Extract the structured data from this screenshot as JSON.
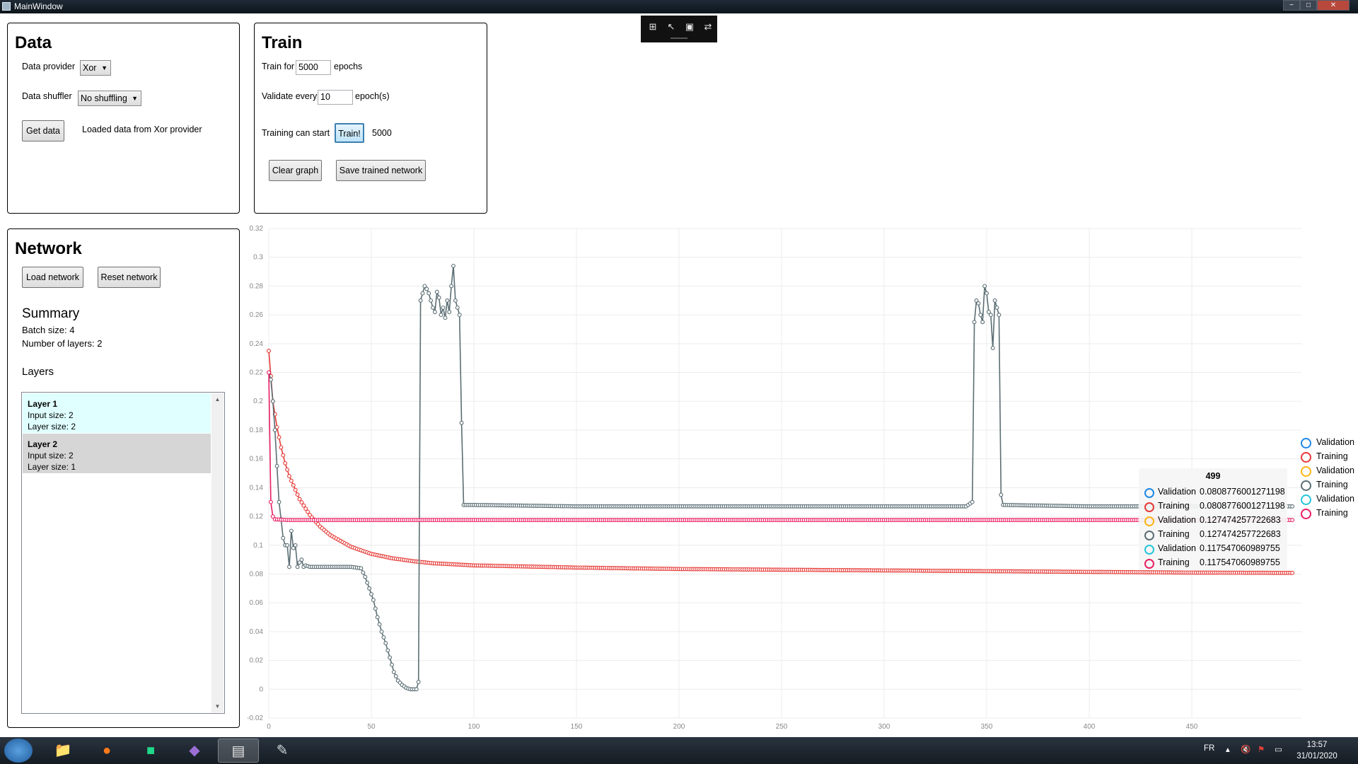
{
  "window": {
    "title": "MainWindow",
    "min_label": "−",
    "max_label": "□",
    "close_label": "✕"
  },
  "overlay_toolbar": {
    "icons": [
      "export-icon",
      "select-icon",
      "zoom-fit-icon",
      "pan-icon"
    ],
    "glyphs": [
      "⊞",
      "↖",
      "▣",
      "⇄"
    ]
  },
  "data_panel": {
    "heading": "Data",
    "provider_label": "Data provider",
    "provider_value": "Xor",
    "shuffler_label": "Data shuffler",
    "shuffler_value": "No shuffling",
    "get_data_button": "Get data",
    "status": "Loaded data from Xor provider"
  },
  "train_panel": {
    "heading": "Train",
    "train_for_label": "Train for",
    "epochs_value": "5000",
    "epochs_label": "epochs",
    "validate_label": "Validate every",
    "validate_value": "10",
    "validate_unit": "epoch(s)",
    "status_label": "Training can start",
    "train_button": "Train!",
    "epoch_counter": "5000",
    "clear_graph_button": "Clear graph",
    "save_network_button": "Save trained network"
  },
  "network_panel": {
    "heading": "Network",
    "load_button": "Load network",
    "reset_button": "Reset network",
    "summary_heading": "Summary",
    "batch_size": "Batch size:  4",
    "num_layers": "Number of layers:  2",
    "layers_heading": "Layers",
    "layers": [
      {
        "title": "Layer  1",
        "input": "Input size:  2",
        "size": "Layer size:  2",
        "color": "#e0ffff"
      },
      {
        "title": "Layer  2",
        "input": "Input size:  2",
        "size": "Layer size:  1",
        "color": "#d6d6d6"
      }
    ]
  },
  "chart_data": {
    "type": "line",
    "xlim": [
      0,
      500
    ],
    "ylim": [
      -0.02,
      0.32
    ],
    "x_ticks": [
      0,
      50,
      100,
      150,
      200,
      250,
      300,
      350,
      400,
      450
    ],
    "y_ticks": [
      "-0.02",
      "0",
      "0.02",
      "0.04",
      "0.06",
      "0.08",
      "0.1",
      "0.12",
      "0.14",
      "0.16",
      "0.18",
      "0.2",
      "0.22",
      "0.24",
      "0.26",
      "0.28",
      "0.3",
      "0.32"
    ],
    "grid": true,
    "legend_position": "right",
    "series": [
      {
        "name": "Validation",
        "color": "#1e88e5",
        "visible": false,
        "points": []
      },
      {
        "name": "Training",
        "color": "#e53935",
        "visible": true,
        "points": [
          [
            0,
            0.235
          ],
          [
            2,
            0.2
          ],
          [
            4,
            0.182
          ],
          [
            6,
            0.168
          ],
          [
            8,
            0.157
          ],
          [
            10,
            0.148
          ],
          [
            15,
            0.132
          ],
          [
            20,
            0.121
          ],
          [
            25,
            0.113
          ],
          [
            30,
            0.107
          ],
          [
            40,
            0.099
          ],
          [
            50,
            0.094
          ],
          [
            60,
            0.091
          ],
          [
            70,
            0.089
          ],
          [
            80,
            0.0875
          ],
          [
            100,
            0.086
          ],
          [
            150,
            0.0845
          ],
          [
            200,
            0.0835
          ],
          [
            250,
            0.083
          ],
          [
            300,
            0.0825
          ],
          [
            350,
            0.082
          ],
          [
            400,
            0.0815
          ],
          [
            450,
            0.081
          ],
          [
            499,
            0.0808
          ]
        ]
      },
      {
        "name": "Validation",
        "color": "#fdb515",
        "visible": false,
        "points": []
      },
      {
        "name": "Training",
        "color": "#5b6e74",
        "visible": true,
        "points": [
          [
            0,
            0.22
          ],
          [
            1,
            0.215
          ],
          [
            2,
            0.2
          ],
          [
            3,
            0.18
          ],
          [
            4,
            0.155
          ],
          [
            5,
            0.13
          ],
          [
            6,
            0.118
          ],
          [
            7,
            0.105
          ],
          [
            8,
            0.1
          ],
          [
            9,
            0.1
          ],
          [
            10,
            0.085
          ],
          [
            11,
            0.11
          ],
          [
            12,
            0.098
          ],
          [
            13,
            0.1
          ],
          [
            14,
            0.085
          ],
          [
            15,
            0.088
          ],
          [
            16,
            0.09
          ],
          [
            17,
            0.085
          ],
          [
            18,
            0.086
          ],
          [
            20,
            0.085
          ],
          [
            30,
            0.085
          ],
          [
            40,
            0.085
          ],
          [
            45,
            0.084
          ],
          [
            47,
            0.078
          ],
          [
            49,
            0.07
          ],
          [
            51,
            0.062
          ],
          [
            53,
            0.05
          ],
          [
            55,
            0.04
          ],
          [
            57,
            0.032
          ],
          [
            59,
            0.022
          ],
          [
            61,
            0.012
          ],
          [
            63,
            0.006
          ],
          [
            65,
            0.003
          ],
          [
            67,
            0.001
          ],
          [
            69,
            0.0
          ],
          [
            72,
            0.0
          ],
          [
            73,
            0.005
          ],
          [
            74,
            0.27
          ],
          [
            75,
            0.275
          ],
          [
            76,
            0.28
          ],
          [
            77,
            0.278
          ],
          [
            78,
            0.275
          ],
          [
            79,
            0.27
          ],
          [
            80,
            0.265
          ],
          [
            81,
            0.262
          ],
          [
            82,
            0.276
          ],
          [
            83,
            0.272
          ],
          [
            84,
            0.26
          ],
          [
            85,
            0.265
          ],
          [
            86,
            0.258
          ],
          [
            87,
            0.27
          ],
          [
            88,
            0.262
          ],
          [
            89,
            0.28
          ],
          [
            90,
            0.294
          ],
          [
            91,
            0.27
          ],
          [
            92,
            0.265
          ],
          [
            93,
            0.26
          ],
          [
            94,
            0.185
          ],
          [
            95,
            0.128
          ],
          [
            100,
            0.128
          ],
          [
            150,
            0.127
          ],
          [
            200,
            0.127
          ],
          [
            250,
            0.127
          ],
          [
            300,
            0.127
          ],
          [
            340,
            0.127
          ],
          [
            343,
            0.13
          ],
          [
            344,
            0.255
          ],
          [
            345,
            0.27
          ],
          [
            346,
            0.268
          ],
          [
            347,
            0.26
          ],
          [
            348,
            0.255
          ],
          [
            349,
            0.28
          ],
          [
            350,
            0.275
          ],
          [
            351,
            0.262
          ],
          [
            352,
            0.26
          ],
          [
            353,
            0.237
          ],
          [
            354,
            0.27
          ],
          [
            355,
            0.265
          ],
          [
            356,
            0.26
          ],
          [
            357,
            0.135
          ],
          [
            358,
            0.128
          ],
          [
            400,
            0.127
          ],
          [
            450,
            0.127
          ],
          [
            499,
            0.127
          ]
        ]
      },
      {
        "name": "Validation",
        "color": "#26c6da",
        "visible": false,
        "points": []
      },
      {
        "name": "Training",
        "color": "#e91e63",
        "visible": true,
        "points": [
          [
            0,
            0.22
          ],
          [
            1,
            0.13
          ],
          [
            2,
            0.12
          ],
          [
            3,
            0.118
          ],
          [
            10,
            0.1175
          ],
          [
            100,
            0.1175
          ],
          [
            200,
            0.1175
          ],
          [
            300,
            0.1175
          ],
          [
            400,
            0.1175
          ],
          [
            499,
            0.1175
          ]
        ]
      }
    ]
  },
  "tooltip": {
    "header": "499",
    "rows": [
      {
        "name": "Validation",
        "value": "0.0808776001271198",
        "color": "#1e88e5"
      },
      {
        "name": "Training",
        "value": "0.0808776001271198",
        "color": "#e53935"
      },
      {
        "name": "Validation",
        "value": "0.127474257722683",
        "color": "#fdb515"
      },
      {
        "name": "Training",
        "value": "0.127474257722683",
        "color": "#5b6e74"
      },
      {
        "name": "Validation",
        "value": "0.117547060989755",
        "color": "#26c6da"
      },
      {
        "name": "Training",
        "value": "0.117547060989755",
        "color": "#e91e63"
      }
    ]
  },
  "taskbar": {
    "apps": [
      "folder-icon",
      "firefox-icon",
      "pycharm-icon",
      "visual-studio-icon",
      "app-window-icon",
      "paint-icon"
    ],
    "app_glyphs": [
      "📁",
      "●",
      "■",
      "◆",
      "▤",
      "✎"
    ],
    "language": "FR",
    "tray_glyphs": [
      "▴",
      "🔇",
      "⚑",
      "▭"
    ],
    "time": "13:57",
    "date": "31/01/2020"
  }
}
